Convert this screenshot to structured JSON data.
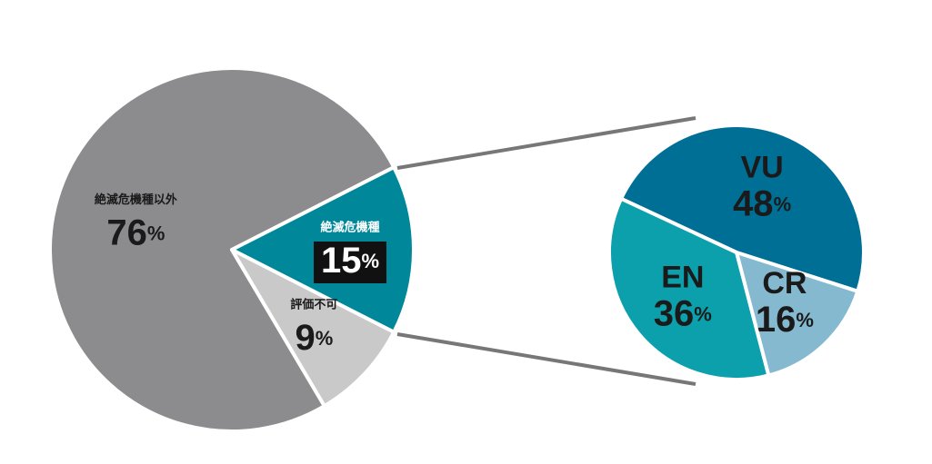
{
  "chart_data": [
    {
      "type": "pie",
      "categories": [
        "絶滅危機種以外",
        "絶滅危機種",
        "評価不可"
      ],
      "values": [
        76,
        15,
        9
      ],
      "value_labels": [
        "76%",
        "15%",
        "9%"
      ],
      "colors": [
        "#8c8b8d",
        "#00889a",
        "#c9c9ca"
      ]
    },
    {
      "type": "pie",
      "categories": [
        "VU",
        "CR",
        "EN"
      ],
      "values": [
        48,
        16,
        36
      ],
      "value_labels": [
        "48%",
        "16%",
        "36%"
      ],
      "colors": [
        "#006f96",
        "#84b9d0",
        "#0ba0ab"
      ]
    }
  ]
}
